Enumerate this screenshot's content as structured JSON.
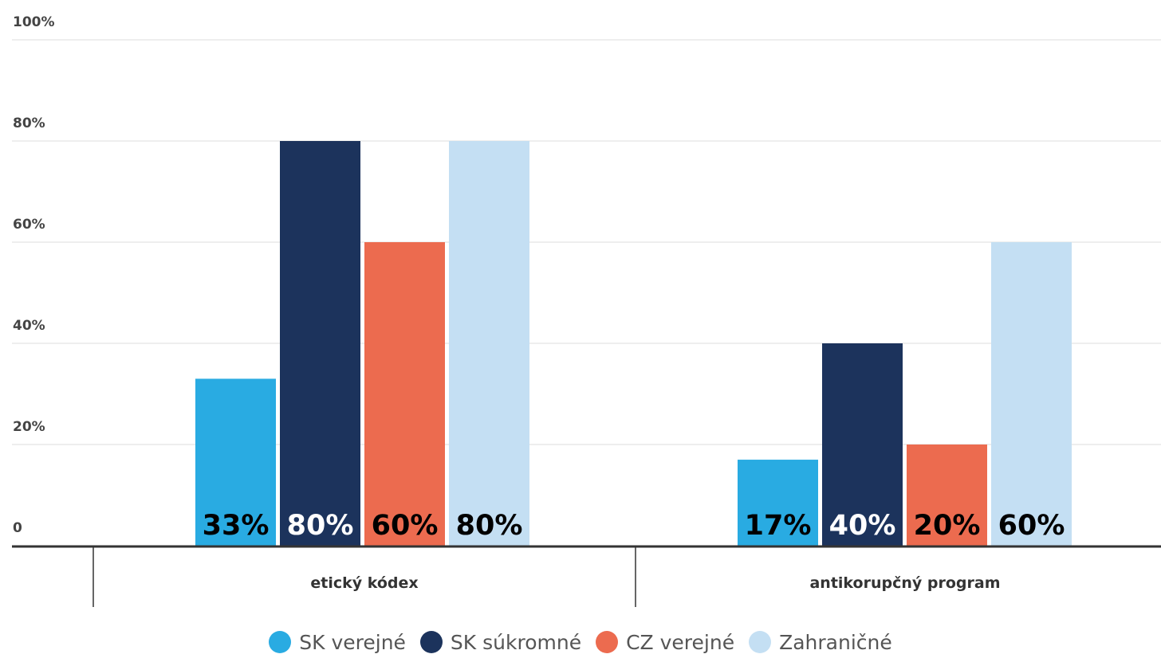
{
  "chart_data": {
    "type": "bar",
    "categories": [
      "etický kódex",
      "antikorupčný program"
    ],
    "series": [
      {
        "name": "SK verejné",
        "values": [
          33,
          17
        ],
        "color": "#29abe2"
      },
      {
        "name": "SK súkromné",
        "values": [
          80,
          40
        ],
        "color": "#1c335c"
      },
      {
        "name": "CZ verejné",
        "values": [
          60,
          20
        ],
        "color": "#ec6b4f"
      },
      {
        "name": "Zahraničné",
        "values": [
          80,
          60
        ],
        "color": "#c4dff3"
      }
    ],
    "data_labels": [
      [
        "33%",
        "17%"
      ],
      [
        "80%",
        "40%"
      ],
      [
        "60%",
        "20%"
      ],
      [
        "80%",
        "60%"
      ]
    ],
    "data_label_colors": [
      "#000000",
      "#ffffff",
      "#000000",
      "#000000"
    ],
    "y_ticks": [
      0,
      20,
      40,
      60,
      80,
      100
    ],
    "y_tick_labels": [
      "0",
      "20%",
      "40%",
      "60%",
      "80%",
      "100%"
    ],
    "ylim": [
      0,
      100
    ],
    "grid": true,
    "legend_position": "bottom"
  }
}
